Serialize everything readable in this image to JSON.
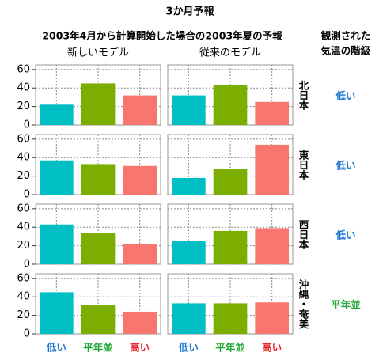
{
  "chart_data": {
    "type": "bar",
    "title": "3か月予報",
    "subtitle": "2003年4月から計算開始した場合の2003年夏の予報",
    "level_header": [
      "観測された",
      "気温の階級"
    ],
    "models": [
      "新しいモデル",
      "従来のモデル"
    ],
    "categories": [
      "低い",
      "平年並",
      "高い"
    ],
    "colors": [
      "#00bfc4",
      "#7cae00",
      "#f8766d"
    ],
    "label_colors": [
      "#1f77d0",
      "#22a83a",
      "#e8242c"
    ],
    "ylim": [
      0,
      65
    ],
    "yticks": [
      0,
      20,
      40,
      60
    ],
    "grid": true,
    "regions": [
      {
        "name": "北日本",
        "observed": "低い",
        "values": [
          [
            22,
            45,
            32
          ],
          [
            32,
            43,
            25
          ]
        ]
      },
      {
        "name": "東日本",
        "observed": "低い",
        "values": [
          [
            37,
            33,
            31
          ],
          [
            18,
            28,
            54
          ]
        ]
      },
      {
        "name": "西日本",
        "observed": "低い",
        "values": [
          [
            43,
            34,
            22
          ],
          [
            25,
            36,
            39
          ]
        ]
      },
      {
        "name": "沖縄・奄美",
        "observed": "平年並",
        "values": [
          [
            45,
            31,
            24
          ],
          [
            33,
            33,
            34
          ]
        ]
      }
    ]
  }
}
